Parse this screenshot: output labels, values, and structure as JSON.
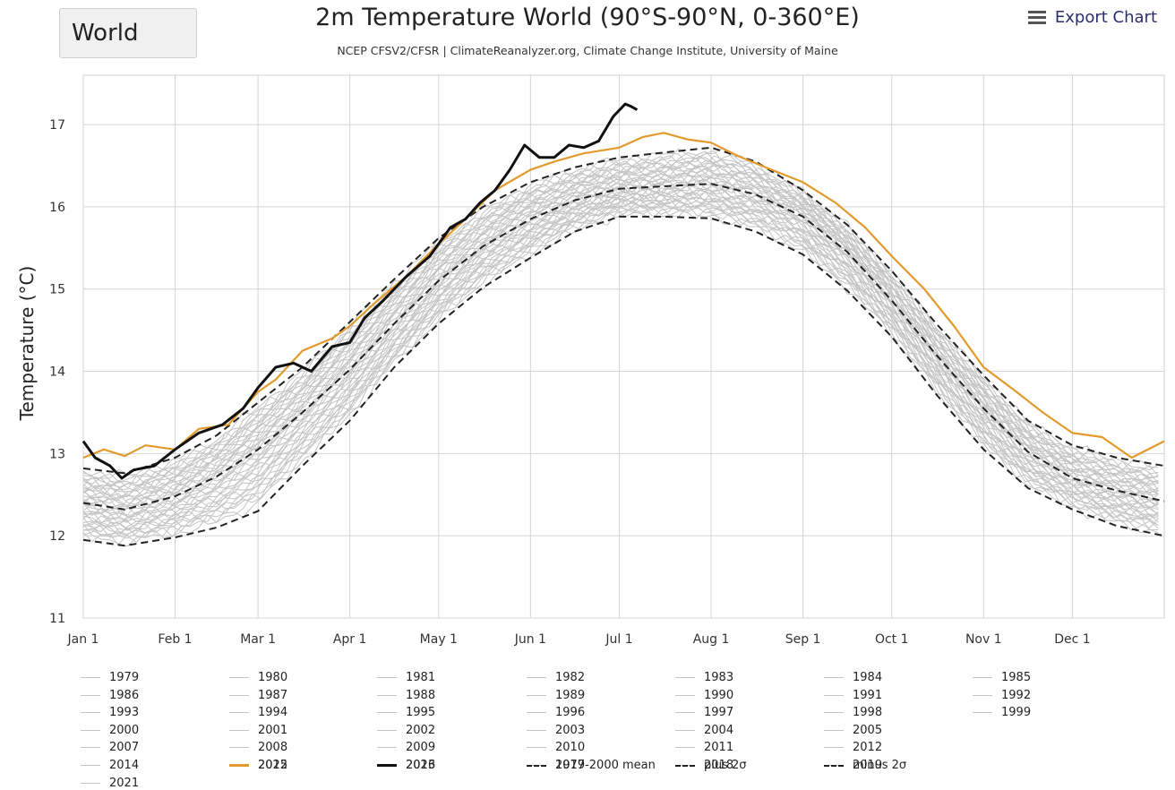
{
  "region_select": {
    "value": "World"
  },
  "header": {
    "title": "2m Temperature World (90°S-90°N, 0-360°E)",
    "subtitle": "NCEP CFSV2/CFSR | ClimateReanalyzer.org, Climate Change Institute, University of Maine",
    "export_label": "Export Chart",
    "export_icon": "menu-icon"
  },
  "colors": {
    "historic": "#c4c4c4",
    "y2022": "#e39a2c",
    "y2023": "#111111",
    "stats": "#222222",
    "grid": "#d4d4d4"
  },
  "chart_data": {
    "type": "line",
    "title": "2m Temperature World (90°S-90°N, 0-360°E)",
    "subtitle": "NCEP CFSV2/CFSR | ClimateReanalyzer.org, Climate Change Institute, University of Maine",
    "ylabel": "Temperature (°C)",
    "xlabel": "",
    "ylim": [
      11,
      17.6
    ],
    "xlim": [
      1,
      366
    ],
    "grid": true,
    "y_ticks": [
      11,
      12,
      13,
      14,
      15,
      16,
      17
    ],
    "x_ticks": [
      {
        "label": "Jan 1",
        "day": 1
      },
      {
        "label": "Feb 1",
        "day": 32
      },
      {
        "label": "Mar 1",
        "day": 60
      },
      {
        "label": "Apr 1",
        "day": 91
      },
      {
        "label": "May 1",
        "day": 121
      },
      {
        "label": "Jun 1",
        "day": 152
      },
      {
        "label": "Jul 1",
        "day": 182
      },
      {
        "label": "Aug 1",
        "day": 213
      },
      {
        "label": "Sep 1",
        "day": 244
      },
      {
        "label": "Oct 1",
        "day": 274
      },
      {
        "label": "Nov 1",
        "day": 305
      },
      {
        "label": "Dec 1",
        "day": 335
      }
    ],
    "climatology_days": [
      1,
      15,
      32,
      46,
      60,
      75,
      91,
      106,
      121,
      136,
      152,
      167,
      182,
      197,
      213,
      228,
      244,
      259,
      274,
      289,
      305,
      320,
      335,
      350,
      366
    ],
    "climatology_mean": [
      12.4,
      12.32,
      12.48,
      12.72,
      13.05,
      13.5,
      14.02,
      14.58,
      15.1,
      15.52,
      15.85,
      16.08,
      16.22,
      16.25,
      16.28,
      16.15,
      15.88,
      15.45,
      14.86,
      14.2,
      13.55,
      13.02,
      12.7,
      12.55,
      12.42
    ],
    "climatology_plus2sigma": [
      12.82,
      12.76,
      12.95,
      13.22,
      13.62,
      14.05,
      14.6,
      15.12,
      15.62,
      16.0,
      16.3,
      16.48,
      16.6,
      16.66,
      16.72,
      16.55,
      16.2,
      15.78,
      15.22,
      14.58,
      13.95,
      13.4,
      13.1,
      12.95,
      12.85
    ],
    "climatology_minus2sigma": [
      11.95,
      11.88,
      11.98,
      12.1,
      12.3,
      12.85,
      13.4,
      14.05,
      14.58,
      15.02,
      15.38,
      15.7,
      15.88,
      15.88,
      15.86,
      15.7,
      15.42,
      14.98,
      14.42,
      13.72,
      13.05,
      12.58,
      12.32,
      12.12,
      12.0
    ],
    "series": [
      {
        "name": "2022",
        "x": [
          1,
          8,
          15,
          22,
          32,
          40,
          50,
          60,
          66,
          75,
          85,
          91,
          100,
          110,
          121,
          130,
          140,
          152,
          160,
          170,
          182,
          190,
          197,
          205,
          213,
          222,
          230,
          244,
          255,
          265,
          274,
          285,
          295,
          305,
          315,
          325,
          335,
          345,
          355,
          366
        ],
        "y": [
          12.95,
          13.05,
          12.97,
          13.1,
          13.05,
          13.3,
          13.35,
          13.75,
          13.9,
          14.25,
          14.4,
          14.55,
          14.85,
          15.15,
          15.55,
          15.85,
          16.2,
          16.45,
          16.55,
          16.65,
          16.72,
          16.85,
          16.9,
          16.82,
          16.78,
          16.62,
          16.5,
          16.3,
          16.05,
          15.75,
          15.4,
          15.0,
          14.55,
          14.05,
          13.78,
          13.5,
          13.25,
          13.2,
          12.95,
          13.15
        ]
      },
      {
        "name": "2023",
        "x": [
          1,
          5,
          10,
          14,
          18,
          25,
          32,
          40,
          48,
          55,
          60,
          66,
          72,
          78,
          85,
          91,
          96,
          102,
          110,
          118,
          125,
          130,
          135,
          140,
          145,
          150,
          155,
          160,
          165,
          170,
          175,
          180,
          184,
          186,
          188
        ],
        "y": [
          13.15,
          12.95,
          12.85,
          12.7,
          12.8,
          12.85,
          13.05,
          13.25,
          13.35,
          13.55,
          13.8,
          14.05,
          14.1,
          14.0,
          14.3,
          14.35,
          14.65,
          14.85,
          15.15,
          15.4,
          15.75,
          15.85,
          16.05,
          16.2,
          16.45,
          16.75,
          16.6,
          16.6,
          16.75,
          16.72,
          16.8,
          17.1,
          17.25,
          17.22,
          17.18
        ]
      }
    ]
  },
  "legend": {
    "years": [
      "1979",
      "1980",
      "1981",
      "1982",
      "1983",
      "1984",
      "1985",
      "1986",
      "1987",
      "1988",
      "1989",
      "1990",
      "1991",
      "1992",
      "1993",
      "1994",
      "1995",
      "1996",
      "1997",
      "1998",
      "1999",
      "2000",
      "2001",
      "2002",
      "2003",
      "2004",
      "2005",
      "2007",
      "2008",
      "2009",
      "2010",
      "2011",
      "2012",
      "2014",
      "2015",
      "2016",
      "2017",
      "2018",
      "2019",
      "2021"
    ],
    "y2022": "2022",
    "y2023": "2023",
    "mean": "1979-2000 mean",
    "plus": "plus 2σ",
    "minus": "minus 2σ"
  }
}
